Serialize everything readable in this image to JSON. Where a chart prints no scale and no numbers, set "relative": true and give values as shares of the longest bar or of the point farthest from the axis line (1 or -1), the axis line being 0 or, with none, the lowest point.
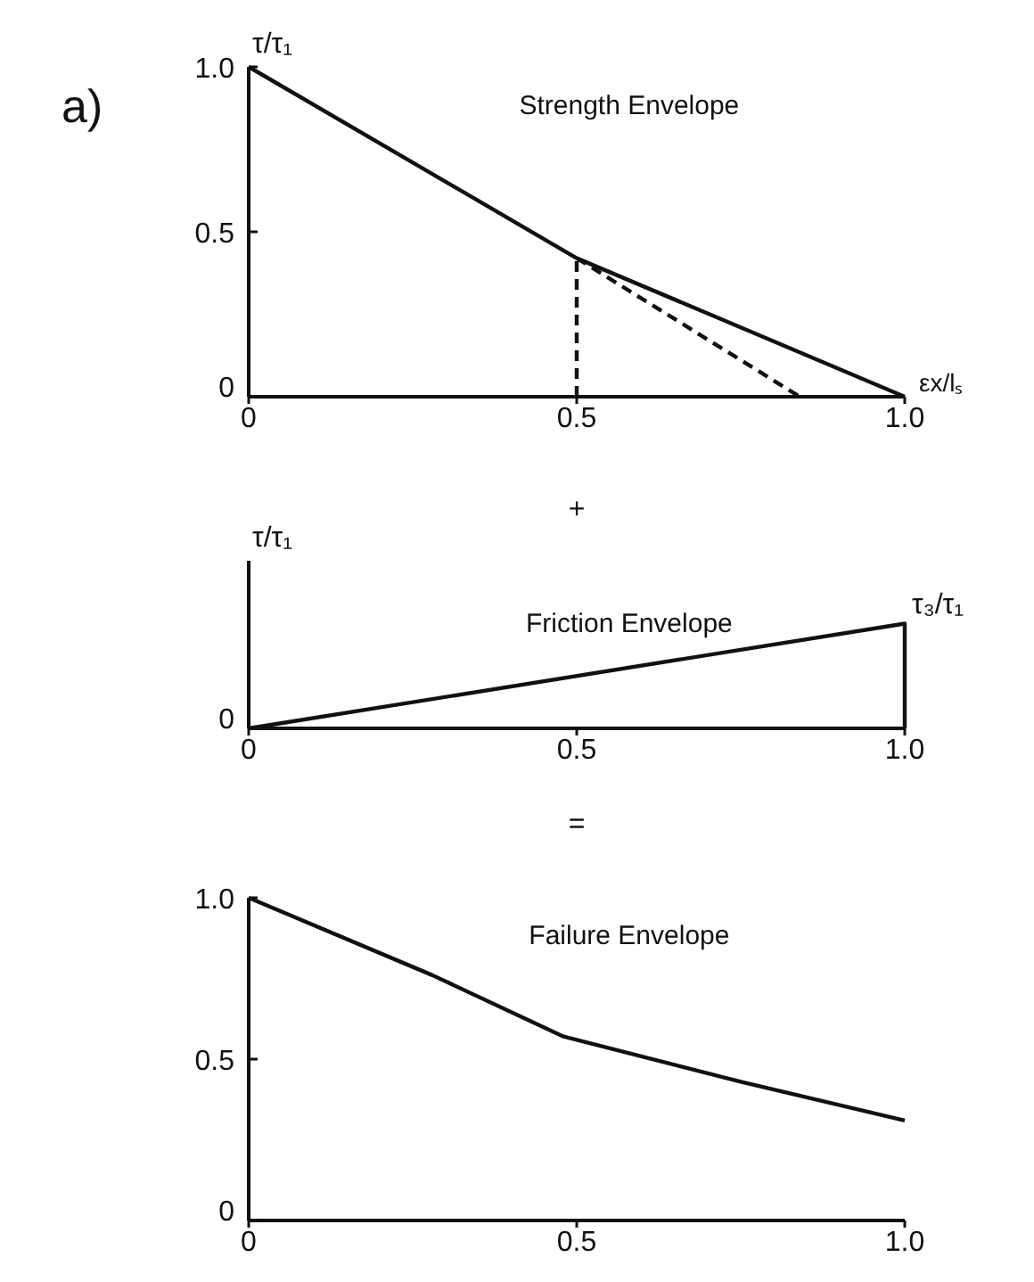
{
  "chart_data": [
    {
      "type": "line",
      "title": "Strength Envelope",
      "ylabel": "τ/τ₁",
      "xlabel": "εx/lₛ",
      "annotations": [
        "a)"
      ],
      "xlim": [
        0,
        1
      ],
      "ylim": [
        0,
        1
      ],
      "xticks": [
        {
          "value": 0,
          "label": "0"
        },
        {
          "value": 0.5,
          "label": "0.5"
        },
        {
          "value": 1,
          "label": "1.0"
        }
      ],
      "yticks": [
        {
          "value": 0,
          "label": "0"
        },
        {
          "value": 0.5,
          "label": "0.5"
        },
        {
          "value": 1,
          "label": "1.0"
        }
      ],
      "grid": false,
      "series": [
        {
          "color": "#111111",
          "x": [
            0,
            0.5,
            1
          ],
          "values": [
            1,
            0.42,
            0
          ],
          "line_style": "solid"
        },
        {
          "color": "#111111",
          "x": [
            0.5,
            0.5
          ],
          "values": [
            0,
            0.42
          ],
          "line_style": "dashed"
        },
        {
          "color": "#111111",
          "x": [
            0.5,
            0.84
          ],
          "values": [
            0.42,
            0
          ],
          "line_style": "dashed"
        }
      ]
    },
    {
      "type": "line",
      "title": "Friction Envelope",
      "ylabel": "τ/τ₁",
      "relative": true,
      "annotations": [
        "+",
        {
          "text": "τ₃/τ₁",
          "x": 1,
          "y": 1
        },
        {
          "text": "0",
          "x": 0,
          "y": 0
        }
      ],
      "xlim": [
        0,
        1
      ],
      "xticks": [
        {
          "value": 0,
          "label": "0"
        },
        {
          "value": 0.5,
          "label": "0.5"
        },
        {
          "value": 1,
          "label": "1.0"
        }
      ],
      "grid": false,
      "series": [
        {
          "color": "#111111",
          "x": [
            0,
            1,
            1
          ],
          "values": [
            0,
            1,
            0
          ],
          "line_style": "solid"
        }
      ]
    },
    {
      "type": "line",
      "title": "Failure Envelope",
      "annotations": [
        "="
      ],
      "xlim": [
        0,
        1
      ],
      "ylim": [
        0,
        1
      ],
      "xticks": [
        {
          "value": 0,
          "label": "0"
        },
        {
          "value": 0.5,
          "label": "0.5"
        },
        {
          "value": 1,
          "label": "1.0"
        }
      ],
      "yticks": [
        {
          "value": 0,
          "label": "0"
        },
        {
          "value": 0.5,
          "label": "0.5"
        },
        {
          "value": 1,
          "label": "1.0"
        }
      ],
      "grid": false,
      "series": [
        {
          "color": "#111111",
          "x": [
            0,
            0.28,
            0.48,
            0.75,
            1
          ],
          "values": [
            1,
            0.76,
            0.57,
            0.43,
            0.31
          ],
          "line_style": "solid"
        }
      ]
    }
  ]
}
